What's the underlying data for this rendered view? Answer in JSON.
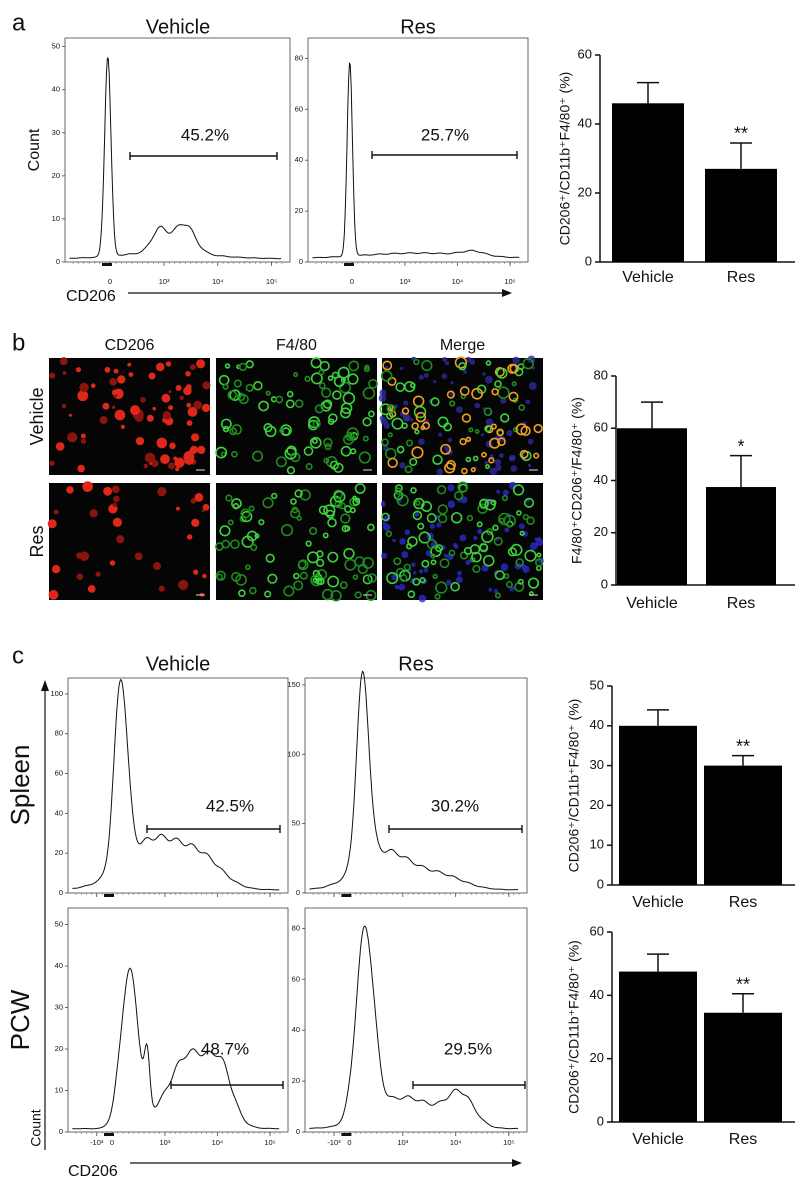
{
  "panel_labels": [
    "a",
    "b",
    "c"
  ],
  "flow_a": {
    "titles": [
      "Vehicle",
      "Res"
    ],
    "ylabel": "Count",
    "xlabel": "CD206",
    "xticks": [
      0,
      {
        "value": 1000,
        "label": "10³"
      },
      {
        "value": 10000,
        "label": "10⁴"
      },
      {
        "value": 100000,
        "label": "10⁵"
      }
    ],
    "plots": [
      {
        "ylim": [
          0,
          52
        ],
        "yticks": [
          0,
          10,
          20,
          30,
          40,
          50
        ],
        "gate": "45.2%"
      },
      {
        "ylim": [
          0,
          88
        ],
        "yticks": [
          0,
          20,
          40,
          60,
          80
        ],
        "gate": "25.7%"
      }
    ]
  },
  "imaging": {
    "columns": [
      "CD206",
      "F4/80",
      "Merge"
    ],
    "rows": [
      "Vehicle",
      "Res"
    ]
  },
  "flow_c": {
    "titles": [
      "Vehicle",
      "Res"
    ],
    "rows": [
      "Spleen",
      "PCW"
    ],
    "ylabel": "Count",
    "xlabel": "CD206",
    "xticks": [
      {
        "value": -1000,
        "label": "-10³"
      },
      0,
      {
        "value": 1000,
        "label": "10³"
      },
      {
        "value": 10000,
        "label": "10⁴"
      },
      {
        "value": 100000,
        "label": "10⁵"
      }
    ],
    "plots": [
      {
        "ylim": [
          0,
          108
        ],
        "yticks": [
          0,
          20,
          40,
          60,
          80,
          100
        ],
        "gate": "42.5%"
      },
      {
        "ylim": [
          0,
          155
        ],
        "yticks": [
          0,
          50,
          100,
          150
        ],
        "gate": "30.2%"
      },
      {
        "ylim": [
          0,
          54
        ],
        "yticks": [
          0,
          10,
          20,
          30,
          40,
          50
        ],
        "gate": "48.7%"
      },
      {
        "ylim": [
          0,
          88
        ],
        "yticks": [
          0,
          20,
          40,
          60,
          80
        ],
        "gate": "29.5%"
      }
    ]
  },
  "chart_data": [
    {
      "type": "bar",
      "categories": [
        "Vehicle",
        "Res"
      ],
      "values": [
        46,
        27
      ],
      "errors": [
        6,
        7.5
      ],
      "significance": [
        null,
        "**"
      ],
      "ylabel": "CD206⁺/CD11b⁺F4/80⁺ (%)",
      "ylim": [
        0,
        60
      ],
      "yticks": [
        0,
        20,
        40,
        60
      ],
      "color": "#000000"
    },
    {
      "type": "bar",
      "categories": [
        "Vehicle",
        "Res"
      ],
      "values": [
        60,
        37.5
      ],
      "errors": [
        10,
        12
      ],
      "significance": [
        null,
        "*"
      ],
      "ylabel": "F4/80⁺CD206⁺/F4/80⁺ (%)",
      "ylim": [
        0,
        80
      ],
      "yticks": [
        0,
        20,
        40,
        60,
        80
      ],
      "color": "#000000"
    },
    {
      "type": "bar",
      "categories": [
        "Vehicle",
        "Res"
      ],
      "values": [
        40,
        30
      ],
      "errors": [
        4,
        2.5
      ],
      "significance": [
        null,
        "**"
      ],
      "ylabel": "CD206⁺/CD11b⁺F4/80⁺ (%)",
      "ylim": [
        0,
        50
      ],
      "yticks": [
        0,
        10,
        20,
        30,
        40,
        50
      ],
      "color": "#000000"
    },
    {
      "type": "bar",
      "categories": [
        "Vehicle",
        "Res"
      ],
      "values": [
        47.5,
        34.5
      ],
      "errors": [
        5.5,
        6
      ],
      "significance": [
        null,
        "**"
      ],
      "ylabel": "CD206⁺/CD11b⁺F4/80⁺ (%)",
      "ylim": [
        0,
        60
      ],
      "yticks": [
        0,
        20,
        40,
        60
      ],
      "color": "#000000"
    }
  ]
}
